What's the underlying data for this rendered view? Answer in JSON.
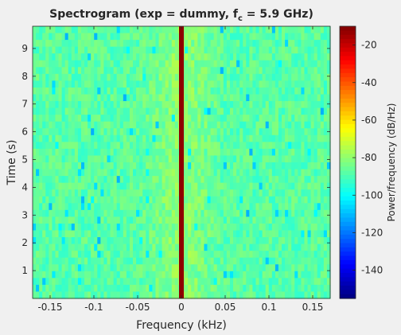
{
  "chart_data": {
    "type": "heatmap",
    "title_text": "Spectrogram (exp = dummy, f",
    "title_subscript": "c",
    "title_suffix": " = 5.9 GHz)",
    "xlabel": "Frequency (kHz)",
    "ylabel": "Time (s)",
    "colorbar_label": "Power/frequency (dB/Hz)",
    "xlim": [
      -0.17,
      0.17
    ],
    "ylim": [
      0,
      9.8
    ],
    "clim": [
      -155,
      -10
    ],
    "x_ticks": [
      {
        "value": -0.15,
        "label": "-0.15"
      },
      {
        "value": -0.1,
        "label": "-0.1"
      },
      {
        "value": -0.05,
        "label": "-0.05"
      },
      {
        "value": 0,
        "label": "0"
      },
      {
        "value": 0.05,
        "label": "0.05"
      },
      {
        "value": 0.1,
        "label": "0.1"
      },
      {
        "value": 0.15,
        "label": "0.15"
      }
    ],
    "y_ticks": [
      {
        "value": 1,
        "label": "1"
      },
      {
        "value": 2,
        "label": "2"
      },
      {
        "value": 3,
        "label": "3"
      },
      {
        "value": 4,
        "label": "4"
      },
      {
        "value": 5,
        "label": "5"
      },
      {
        "value": 6,
        "label": "6"
      },
      {
        "value": 7,
        "label": "7"
      },
      {
        "value": 8,
        "label": "8"
      },
      {
        "value": 9,
        "label": "9"
      }
    ],
    "colorbar_ticks": [
      {
        "value": -20,
        "label": "-20"
      },
      {
        "value": -40,
        "label": "-40"
      },
      {
        "value": -60,
        "label": "-60"
      },
      {
        "value": -80,
        "label": "-80"
      },
      {
        "value": -100,
        "label": "-100"
      },
      {
        "value": -120,
        "label": "-120"
      },
      {
        "value": -140,
        "label": "-140"
      }
    ],
    "colormap": "jet",
    "background_level_db": -88,
    "center_ridge_level_db": -80,
    "center_ridge_halfwidth_khz": 0.05,
    "carrier_line": {
      "frequency_khz": 0,
      "level_db": -12
    }
  }
}
